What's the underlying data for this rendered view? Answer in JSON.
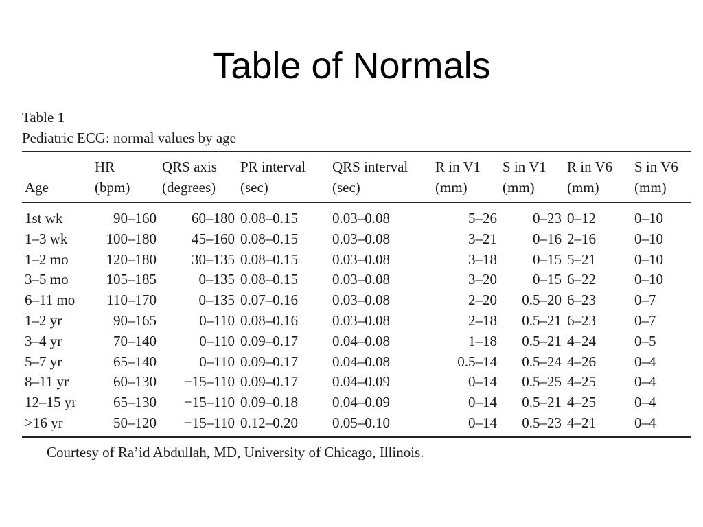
{
  "slide": {
    "title": "Table of Normals"
  },
  "table": {
    "caption_number": "Table 1",
    "caption_text": "Pediatric ECG: normal values by age",
    "headers": [
      {
        "top": "",
        "bottom": "Age"
      },
      {
        "top": "HR",
        "bottom": "(bpm)"
      },
      {
        "top": "QRS axis",
        "bottom": "(degrees)"
      },
      {
        "top": "PR interval",
        "bottom": "(sec)"
      },
      {
        "top": "QRS interval",
        "bottom": "(sec)"
      },
      {
        "top": "R in V1",
        "bottom": "(mm)"
      },
      {
        "top": "S in V1",
        "bottom": "(mm)"
      },
      {
        "top": "R in V6",
        "bottom": "(mm)"
      },
      {
        "top": "S in V6",
        "bottom": "(mm)"
      }
    ],
    "rows": [
      [
        "1st wk",
        "90–160",
        "60–180",
        "0.08–0.15",
        "0.03–0.08",
        "5–26",
        "0–23",
        "0–12",
        "0–10"
      ],
      [
        "1–3 wk",
        "100–180",
        "45–160",
        "0.08–0.15",
        "0.03–0.08",
        "3–21",
        "0–16",
        "2–16",
        "0–10"
      ],
      [
        "1–2 mo",
        "120–180",
        "30–135",
        "0.08–0.15",
        "0.03–0.08",
        "3–18",
        "0–15",
        "5–21",
        "0–10"
      ],
      [
        "3–5 mo",
        "105–185",
        "0–135",
        "0.08–0.15",
        "0.03–0.08",
        "3–20",
        "0–15",
        "6–22",
        "0–10"
      ],
      [
        "6–11 mo",
        "110–170",
        "0–135",
        "0.07–0.16",
        "0.03–0.08",
        "2–20",
        "0.5–20",
        "6–23",
        "0–7"
      ],
      [
        "1–2 yr",
        "90–165",
        "0–110",
        "0.08–0.16",
        "0.03–0.08",
        "2–18",
        "0.5–21",
        "6–23",
        "0–7"
      ],
      [
        "3–4 yr",
        "70–140",
        "0–110",
        "0.09–0.17",
        "0.04–0.08",
        "1–18",
        "0.5–21",
        "4–24",
        "0–5"
      ],
      [
        "5–7 yr",
        "65–140",
        "0–110",
        "0.09–0.17",
        "0.04–0.08",
        "0.5–14",
        "0.5–24",
        "4–26",
        "0–4"
      ],
      [
        "8–11 yr",
        "60–130",
        "−15–110",
        "0.09–0.17",
        "0.04–0.09",
        "0–14",
        "0.5–25",
        "4–25",
        "0–4"
      ],
      [
        "12–15 yr",
        "65–130",
        "−15–110",
        "0.09–0.18",
        "0.04–0.09",
        "0–14",
        "0.5–21",
        "4–25",
        "0–4"
      ],
      [
        ">16 yr",
        "50–120",
        "−15–110",
        "0.12–0.20",
        "0.05–0.10",
        "0–14",
        "0.5–23",
        "4–21",
        "0–4"
      ]
    ],
    "footnote": "Courtesy of Ra’id Abdullah, MD, University of Chicago, Illinois."
  }
}
